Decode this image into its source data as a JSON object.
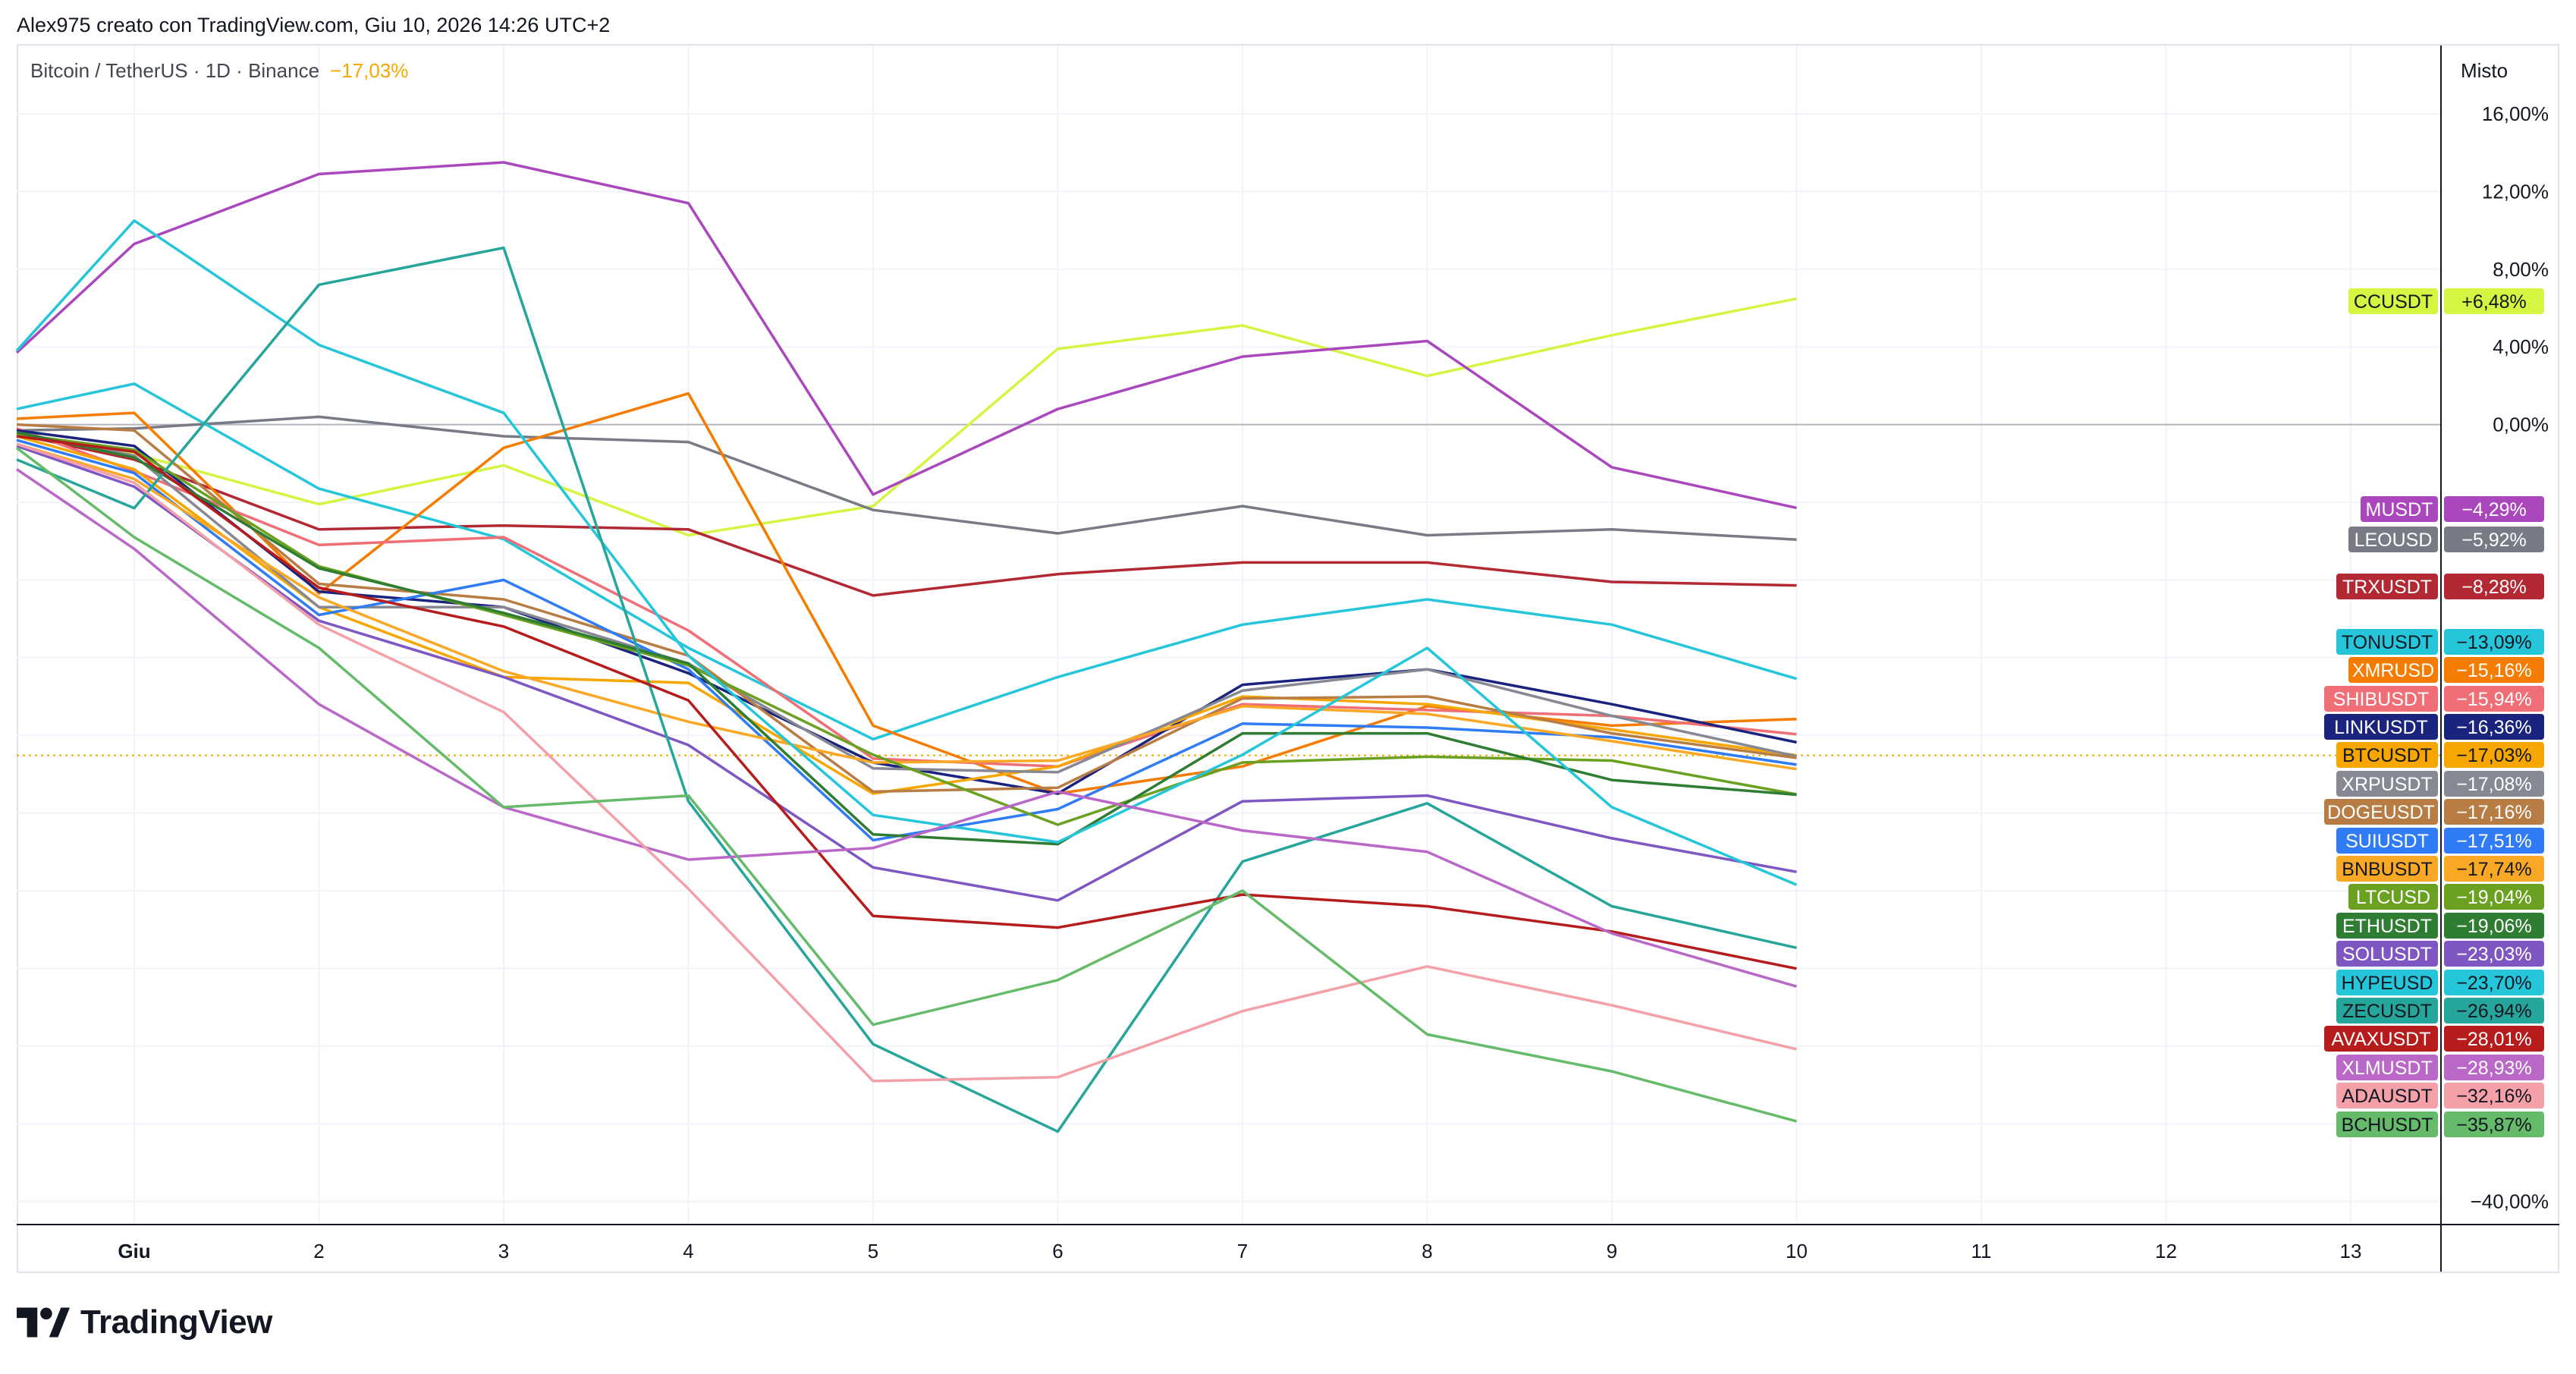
{
  "header": {
    "creator_line": "Alex975 creato con TradingView.com, Giu 10, 2026 14:26 UTC+2"
  },
  "legend": {
    "symbol_line": "Bitcoin / TetherUS · 1D · Binance",
    "change": "−17,03%"
  },
  "scale_mode": "Misto",
  "footer": {
    "brand": "TradingView"
  },
  "colors": {
    "grid": "#f0f3fa",
    "frame": "#e0e3eb",
    "zero_line": "#b2b5be",
    "btc_dotted": "#f7a600"
  },
  "chart_data": {
    "type": "line",
    "x": [
      "Giu 1",
      "2",
      "3",
      "4",
      "5",
      "6",
      "7",
      "8",
      "9",
      "10"
    ],
    "x_tick_labels": [
      "Giu",
      "2",
      "3",
      "4",
      "5",
      "6",
      "7",
      "8",
      "9",
      "10",
      "11",
      "12",
      "13"
    ],
    "y_tick_labels": [
      "16,00%",
      "12,00%",
      "8,00%",
      "4,00%",
      "0,00%",
      "−40,00%"
    ],
    "y_ticks": [
      16,
      12,
      8,
      4,
      0,
      -40
    ],
    "ylim": [
      -41.5,
      18
    ],
    "y_unit": "%",
    "grid": true,
    "legend_position": "right price scale",
    "series": [
      {
        "name": "CCUSDT",
        "label": "+6,48%",
        "color": "#d4f542",
        "text_color": "#131722",
        "start": -0.5,
        "values": [
          -1.5,
          -4.1,
          -2.1,
          -5.7,
          -4.2,
          3.9,
          5.1,
          2.5,
          4.6,
          6.48
        ]
      },
      {
        "name": "MUSDT",
        "label": "−4,29%",
        "color": "#ab47bc",
        "text_color": "#ffffff",
        "start": 3.7,
        "values": [
          9.3,
          12.9,
          13.5,
          11.4,
          -3.6,
          0.8,
          3.5,
          4.3,
          -2.2,
          -4.29
        ]
      },
      {
        "name": "LEOUSD",
        "label": "−5,92%",
        "color": "#787b86",
        "text_color": "#ffffff",
        "start": -0.3,
        "values": [
          -0.2,
          0.4,
          -0.6,
          -0.9,
          -4.4,
          -5.6,
          -4.2,
          -5.7,
          -5.4,
          -5.92
        ]
      },
      {
        "name": "TRXUSDT",
        "label": "−8,28%",
        "color": "#b22833",
        "text_color": "#ffffff",
        "start": -0.5,
        "values": [
          -1.8,
          -5.4,
          -5.2,
          -5.4,
          -8.8,
          -7.7,
          -7.1,
          -7.1,
          -8.1,
          -8.28
        ]
      },
      {
        "name": "TONUSDT",
        "label": "−13,09%",
        "color": "#26c6da",
        "text_color": "#131722",
        "start": 0.8,
        "values": [
          2.1,
          -3.3,
          -5.9,
          -11.5,
          -16.2,
          -13.0,
          -10.3,
          -9.0,
          -10.3,
          -13.09
        ]
      },
      {
        "name": "XMRUSD",
        "label": "−15,16%",
        "color": "#f57c00",
        "text_color": "#ffffff",
        "start": 0.3,
        "values": [
          0.6,
          -8.7,
          -1.2,
          1.6,
          -15.5,
          -19.0,
          -17.6,
          -14.5,
          -15.5,
          -15.16
        ]
      },
      {
        "name": "SHIBUSDT",
        "label": "−15,94%",
        "color": "#f06e76",
        "text_color": "#ffffff",
        "start": -0.2,
        "values": [
          -2.4,
          -6.2,
          -5.8,
          -10.6,
          -17.2,
          -17.6,
          -14.4,
          -14.7,
          -15.0,
          -15.94
        ]
      },
      {
        "name": "LINKUSDT",
        "label": "−16,36%",
        "color": "#1a237e",
        "text_color": "#ffffff",
        "start": -0.3,
        "values": [
          -1.1,
          -8.6,
          -9.4,
          -12.8,
          -17.4,
          -19.0,
          -13.4,
          -12.6,
          -14.4,
          -16.36
        ]
      },
      {
        "name": "BTCUSDT",
        "label": "−17,03%",
        "color": "#f7a600",
        "text_color": "#131722",
        "start": -0.6,
        "values": [
          -2.3,
          -9.4,
          -13.0,
          -13.3,
          -19.0,
          -17.6,
          -14.0,
          -14.4,
          -15.7,
          -17.03
        ]
      },
      {
        "name": "XRPUSDT",
        "label": "−17,08%",
        "color": "#868993",
        "text_color": "#ffffff",
        "start": -0.4,
        "values": [
          -1.6,
          -9.4,
          -9.4,
          -12.3,
          -17.7,
          -17.9,
          -13.7,
          -12.6,
          -15.0,
          -17.08
        ]
      },
      {
        "name": "DOGEUSDT",
        "label": "−17,16%",
        "color": "#b87d45",
        "text_color": "#ffffff",
        "start": 0.0,
        "values": [
          -0.3,
          -8.2,
          -9.0,
          -11.9,
          -18.9,
          -18.7,
          -14.1,
          -14.0,
          -15.9,
          -17.16
        ]
      },
      {
        "name": "SUIUSDT",
        "label": "−17,51%",
        "color": "#2f7cf6",
        "text_color": "#ffffff",
        "start": -0.8,
        "values": [
          -2.5,
          -9.8,
          -8.0,
          -12.6,
          -21.4,
          -19.8,
          -15.4,
          -15.6,
          -16.1,
          -17.51
        ]
      },
      {
        "name": "BNBUSDT",
        "label": "−17,74%",
        "color": "#f9a825",
        "text_color": "#131722",
        "start": -1.0,
        "values": [
          -2.8,
          -8.9,
          -12.7,
          -15.3,
          -17.4,
          -17.3,
          -14.5,
          -14.9,
          -16.3,
          -17.74
        ]
      },
      {
        "name": "LTCUSD",
        "label": "−19,04%",
        "color": "#6aa121",
        "text_color": "#ffffff",
        "start": -0.5,
        "values": [
          -1.3,
          -7.3,
          -9.8,
          -12.4,
          -17.0,
          -20.6,
          -17.4,
          -17.1,
          -17.3,
          -19.04
        ]
      },
      {
        "name": "ETHUSDT",
        "label": "−19,06%",
        "color": "#2e7d32",
        "text_color": "#ffffff",
        "start": -0.4,
        "values": [
          -1.7,
          -7.4,
          -9.7,
          -12.3,
          -21.1,
          -21.6,
          -15.9,
          -15.9,
          -18.3,
          -19.06
        ]
      },
      {
        "name": "SOLUSDT",
        "label": "−23,03%",
        "color": "#7e57c2",
        "text_color": "#ffffff",
        "start": -1.1,
        "values": [
          -3.2,
          -10.1,
          -13.0,
          -16.5,
          -22.8,
          -24.5,
          -19.4,
          -19.1,
          -21.3,
          -23.03
        ]
      },
      {
        "name": "HYPEUSD",
        "label": "−23,70%",
        "color": "#26c6da",
        "text_color": "#131722",
        "start": 3.8,
        "values": [
          10.5,
          4.1,
          0.6,
          -11.9,
          -20.1,
          -21.5,
          -17.0,
          -11.5,
          -19.7,
          -23.7
        ]
      },
      {
        "name": "ZECUSDT",
        "label": "−26,94%",
        "color": "#26a69a",
        "text_color": "#131722",
        "start": -1.8,
        "values": [
          -4.3,
          7.2,
          9.1,
          -19.4,
          -31.9,
          -36.4,
          -22.5,
          -19.5,
          -24.8,
          -26.94
        ]
      },
      {
        "name": "AVAXUSDT",
        "label": "−28,01%",
        "color": "#b71c1c",
        "text_color": "#ffffff",
        "start": -0.6,
        "values": [
          -1.4,
          -8.4,
          -10.4,
          -14.2,
          -25.3,
          -25.9,
          -24.2,
          -24.8,
          -26.1,
          -28.01
        ]
      },
      {
        "name": "XLMUSDT",
        "label": "−28,93%",
        "color": "#ba68c8",
        "text_color": "#ffffff",
        "start": -2.3,
        "values": [
          -6.4,
          -14.4,
          -19.7,
          -22.4,
          -21.8,
          -18.9,
          -20.9,
          -22.0,
          -26.2,
          -28.93
        ]
      },
      {
        "name": "ADAUSDT",
        "label": "−32,16%",
        "color": "#f4a0a8",
        "text_color": "#131722",
        "start": -1.0,
        "values": [
          -3.0,
          -10.3,
          -14.8,
          -23.9,
          -33.8,
          -33.6,
          -30.2,
          -27.9,
          -29.9,
          -32.16
        ]
      },
      {
        "name": "BCHUSDT",
        "label": "−35,87%",
        "color": "#66bb6a",
        "text_color": "#131722",
        "start": -1.2,
        "values": [
          -5.8,
          -11.5,
          -19.7,
          -19.1,
          -30.9,
          -28.6,
          -24.0,
          -31.4,
          -33.3,
          -35.87
        ]
      }
    ]
  }
}
